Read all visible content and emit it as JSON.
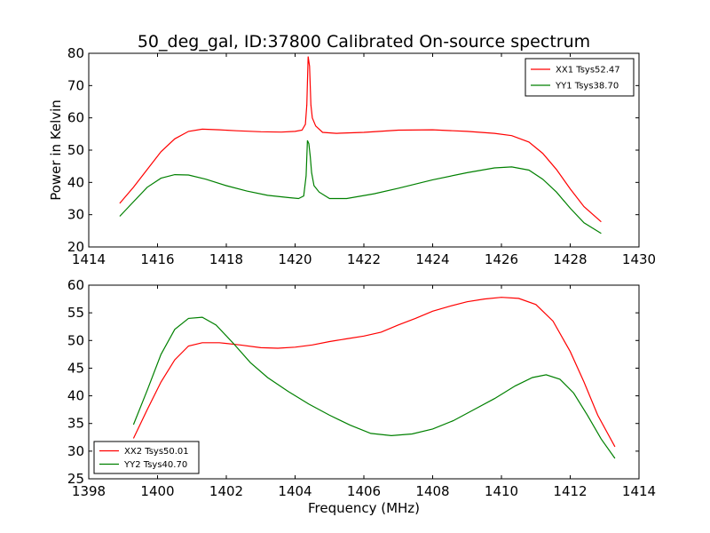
{
  "chart_data": [
    {
      "type": "line",
      "title": "50_deg_gal, ID:37800 Calibrated On-source spectrum",
      "xlabel": "",
      "ylabel": "Power in Kelvin",
      "xlim": [
        1414,
        1430
      ],
      "ylim": [
        20,
        80
      ],
      "xticks": [
        1414,
        1416,
        1418,
        1420,
        1422,
        1424,
        1426,
        1428,
        1430
      ],
      "yticks": [
        20,
        30,
        40,
        50,
        60,
        70,
        80
      ],
      "grid": false,
      "legend_position": "top-right",
      "series": [
        {
          "name": "XX1 Tsys52.47",
          "color": "#ff0000",
          "x": [
            1414.9,
            1415.3,
            1415.7,
            1416.1,
            1416.5,
            1416.9,
            1417.3,
            1417.8,
            1418.3,
            1419.0,
            1419.6,
            1420.0,
            1420.2,
            1420.3,
            1420.34,
            1420.38,
            1420.42,
            1420.46,
            1420.5,
            1420.6,
            1420.8,
            1421.2,
            1422.0,
            1423.0,
            1424.0,
            1425.0,
            1425.8,
            1426.3,
            1426.8,
            1427.2,
            1427.6,
            1428.0,
            1428.4,
            1428.9
          ],
          "y": [
            33.5,
            38.5,
            44.0,
            49.5,
            53.5,
            55.8,
            56.5,
            56.3,
            56.0,
            55.7,
            55.6,
            55.8,
            56.2,
            58.0,
            64.0,
            79.0,
            76.0,
            64.0,
            60.0,
            57.5,
            55.5,
            55.2,
            55.5,
            56.2,
            56.3,
            55.8,
            55.2,
            54.5,
            52.5,
            49.0,
            44.0,
            38.0,
            32.5,
            27.8
          ]
        },
        {
          "name": "YY1 Tsys38.70",
          "color": "#008000",
          "x": [
            1414.9,
            1415.3,
            1415.7,
            1416.1,
            1416.5,
            1416.9,
            1417.4,
            1418.0,
            1418.6,
            1419.2,
            1419.8,
            1420.1,
            1420.25,
            1420.32,
            1420.36,
            1420.4,
            1420.44,
            1420.48,
            1420.55,
            1420.7,
            1421.0,
            1421.5,
            1422.3,
            1423.0,
            1424.0,
            1425.0,
            1425.8,
            1426.3,
            1426.8,
            1427.2,
            1427.6,
            1428.0,
            1428.4,
            1428.9
          ],
          "y": [
            29.5,
            34.0,
            38.5,
            41.3,
            42.4,
            42.3,
            41.0,
            39.0,
            37.3,
            36.0,
            35.3,
            35.0,
            35.8,
            42.0,
            53.0,
            52.0,
            48.0,
            43.0,
            39.0,
            37.0,
            35.0,
            35.0,
            36.5,
            38.2,
            40.8,
            43.0,
            44.5,
            44.8,
            43.8,
            41.0,
            37.0,
            32.0,
            27.5,
            24.2
          ]
        }
      ]
    },
    {
      "type": "line",
      "title": "",
      "xlabel": "Frequency (MHz)",
      "ylabel": "",
      "xlim": [
        1398,
        1414
      ],
      "ylim": [
        25,
        60
      ],
      "xticks": [
        1398,
        1400,
        1402,
        1404,
        1406,
        1408,
        1410,
        1412,
        1414
      ],
      "yticks": [
        25,
        30,
        35,
        40,
        45,
        50,
        55,
        60
      ],
      "grid": false,
      "legend_position": "bottom-left",
      "series": [
        {
          "name": "XX2 Tsys50.01",
          "color": "#ff0000",
          "x": [
            1399.3,
            1399.7,
            1400.1,
            1400.5,
            1400.9,
            1401.3,
            1401.8,
            1402.4,
            1403.0,
            1403.5,
            1404.0,
            1404.5,
            1405.0,
            1405.5,
            1406.0,
            1406.5,
            1407.0,
            1407.5,
            1408.0,
            1408.5,
            1409.0,
            1409.5,
            1410.0,
            1410.5,
            1411.0,
            1411.5,
            1412.0,
            1412.4,
            1412.8,
            1413.3
          ],
          "y": [
            32.3,
            37.5,
            42.5,
            46.5,
            49.0,
            49.6,
            49.6,
            49.2,
            48.7,
            48.6,
            48.8,
            49.2,
            49.8,
            50.3,
            50.8,
            51.5,
            52.8,
            54.0,
            55.3,
            56.2,
            57.0,
            57.5,
            57.8,
            57.6,
            56.5,
            53.5,
            48.0,
            42.5,
            36.5,
            30.8
          ]
        },
        {
          "name": "YY2 Tsys40.70",
          "color": "#008000",
          "x": [
            1399.3,
            1399.7,
            1400.1,
            1400.5,
            1400.9,
            1401.3,
            1401.7,
            1402.2,
            1402.7,
            1403.2,
            1403.8,
            1404.4,
            1405.0,
            1405.6,
            1406.2,
            1406.8,
            1407.4,
            1408.0,
            1408.6,
            1409.2,
            1409.8,
            1410.4,
            1410.9,
            1411.3,
            1411.7,
            1412.1,
            1412.5,
            1412.9,
            1413.3
          ],
          "y": [
            34.8,
            41.0,
            47.5,
            52.0,
            54.0,
            54.2,
            52.8,
            49.5,
            46.0,
            43.3,
            40.8,
            38.5,
            36.5,
            34.7,
            33.2,
            32.8,
            33.1,
            34.0,
            35.5,
            37.5,
            39.5,
            41.8,
            43.3,
            43.8,
            43.0,
            40.5,
            36.5,
            32.2,
            28.7
          ]
        }
      ]
    }
  ]
}
